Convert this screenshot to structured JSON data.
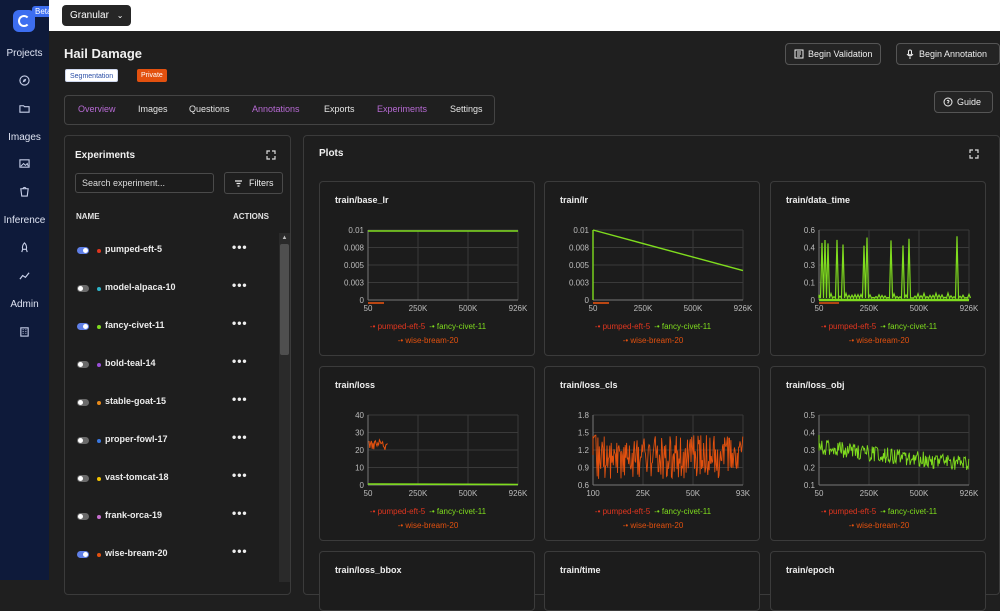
{
  "sidebar": {
    "beta": "Beta",
    "items": [
      {
        "label": "Projects",
        "icon": "projects"
      },
      {
        "icon": "compass-icon"
      },
      {
        "icon": "folder-icon"
      },
      {
        "label": "Images",
        "icon": "images"
      },
      {
        "icon": "image-icon"
      },
      {
        "icon": "bucket-icon"
      },
      {
        "label": "Inference",
        "icon": "inference"
      },
      {
        "icon": "rocket-icon"
      },
      {
        "icon": "trend-icon"
      },
      {
        "label": "Admin",
        "icon": "admin"
      },
      {
        "icon": "building-icon"
      }
    ]
  },
  "topbar": {
    "workspace": "Granular"
  },
  "project": {
    "title": "Hail Damage",
    "tag_type": "Segmentation",
    "tag_visibility": "Private"
  },
  "actions": {
    "validation": "Begin Validation",
    "annotation": "Begin Annotation",
    "guide": "Guide"
  },
  "tabs": [
    {
      "label": "Overview",
      "active": true
    },
    {
      "label": "Images"
    },
    {
      "label": "Questions"
    },
    {
      "label": "Annotations",
      "active": true
    },
    {
      "label": "Exports"
    },
    {
      "label": "Experiments",
      "active": true
    },
    {
      "label": "Settings"
    }
  ],
  "experiments": {
    "title": "Experiments",
    "search_placeholder": "Search experiment...",
    "filters": "Filters",
    "col_name": "NAME",
    "col_actions": "ACTIONS",
    "rows": [
      {
        "name": "pumped-eft-5",
        "on": true,
        "color": "#e0361f"
      },
      {
        "name": "model-alpaca-10",
        "on": false,
        "color": "#2db3c7"
      },
      {
        "name": "fancy-civet-11",
        "on": true,
        "color": "#7fdc1e"
      },
      {
        "name": "bold-teal-14",
        "on": false,
        "color": "#9a4fd8"
      },
      {
        "name": "stable-goat-15",
        "on": false,
        "color": "#e88a1a"
      },
      {
        "name": "proper-fowl-17",
        "on": false,
        "color": "#3a78e0"
      },
      {
        "name": "vast-tomcat-18",
        "on": false,
        "color": "#f2c200"
      },
      {
        "name": "frank-orca-19",
        "on": false,
        "color": "#c86fd0"
      },
      {
        "name": "wise-bream-20",
        "on": true,
        "color": "#e3510f"
      }
    ]
  },
  "plots": {
    "title": "Plots"
  },
  "legend": {
    "s1": "pumped-eft-5",
    "s2": "fancy-civet-11",
    "s3": "wise-bream-20",
    "c1": "#e0361f",
    "c2": "#7fdc1e",
    "c3": "#e3510f"
  },
  "chart_data": [
    {
      "type": "line",
      "title": "train/base_lr",
      "yticks": [
        "0.01",
        "0.008",
        "0.005",
        "0.003",
        "0"
      ],
      "xticks": [
        "50",
        "250K",
        "500K",
        "926K"
      ],
      "series": [
        {
          "name": "fancy-civet-11",
          "x": [
            50,
            926000
          ],
          "y": [
            0.01,
            0.01
          ]
        },
        {
          "name": "wise-bream-20",
          "x": [
            50,
            60000
          ],
          "y": [
            0,
            0
          ]
        }
      ]
    },
    {
      "type": "line",
      "title": "train/lr",
      "yticks": [
        "0.01",
        "0.008",
        "0.005",
        "0.003",
        "0"
      ],
      "xticks": [
        "50",
        "250K",
        "500K",
        "926K"
      ],
      "series": [
        {
          "name": "fancy-civet-11",
          "x": [
            50,
            926000
          ],
          "y": [
            0.01,
            0.0042
          ]
        },
        {
          "name": "wise-bream-20",
          "x": [
            50,
            60000
          ],
          "y": [
            0,
            0
          ]
        }
      ]
    },
    {
      "type": "line",
      "title": "train/data_time",
      "yticks": [
        "0.6",
        "0.4",
        "0.3",
        "0.1",
        "0"
      ],
      "xticks": [
        "50",
        "250K",
        "500K",
        "926K"
      ],
      "series": [
        {
          "name": "fancy-civet-11",
          "x": [
            50,
            926000
          ],
          "y": [
            0,
            0
          ]
        }
      ]
    },
    {
      "type": "line",
      "title": "train/loss",
      "yticks": [
        "40",
        "30",
        "20",
        "10",
        "0"
      ],
      "xticks": [
        "50",
        "250K",
        "500K",
        "926K"
      ],
      "series": [
        {
          "name": "wise-bream-20",
          "x": [
            50,
            120000
          ],
          "y": [
            16,
            15
          ]
        },
        {
          "name": "fancy-civet-11",
          "x": [
            50,
            926000
          ],
          "y": [
            1,
            0.5
          ]
        }
      ]
    },
    {
      "type": "line",
      "title": "train/loss_cls",
      "yticks": [
        "1.8",
        "1.5",
        "1.2",
        "0.9",
        "0.6"
      ],
      "xticks": [
        "100",
        "25K",
        "50K",
        "93K"
      ],
      "series": [
        {
          "name": "wise-bream-20",
          "x": [
            100,
            93000
          ],
          "y": [
            1.2,
            1.15
          ]
        }
      ]
    },
    {
      "type": "line",
      "title": "train/loss_obj",
      "yticks": [
        "0.5",
        "0.4",
        "0.3",
        "0.2",
        "0.1"
      ],
      "xticks": [
        "50",
        "250K",
        "500K",
        "926K"
      ],
      "series": [
        {
          "name": "fancy-civet-11",
          "x": [
            50,
            926000
          ],
          "y": [
            0.33,
            0.17
          ]
        }
      ]
    }
  ],
  "more_charts": [
    "train/loss_bbox",
    "train/time",
    "train/epoch"
  ]
}
